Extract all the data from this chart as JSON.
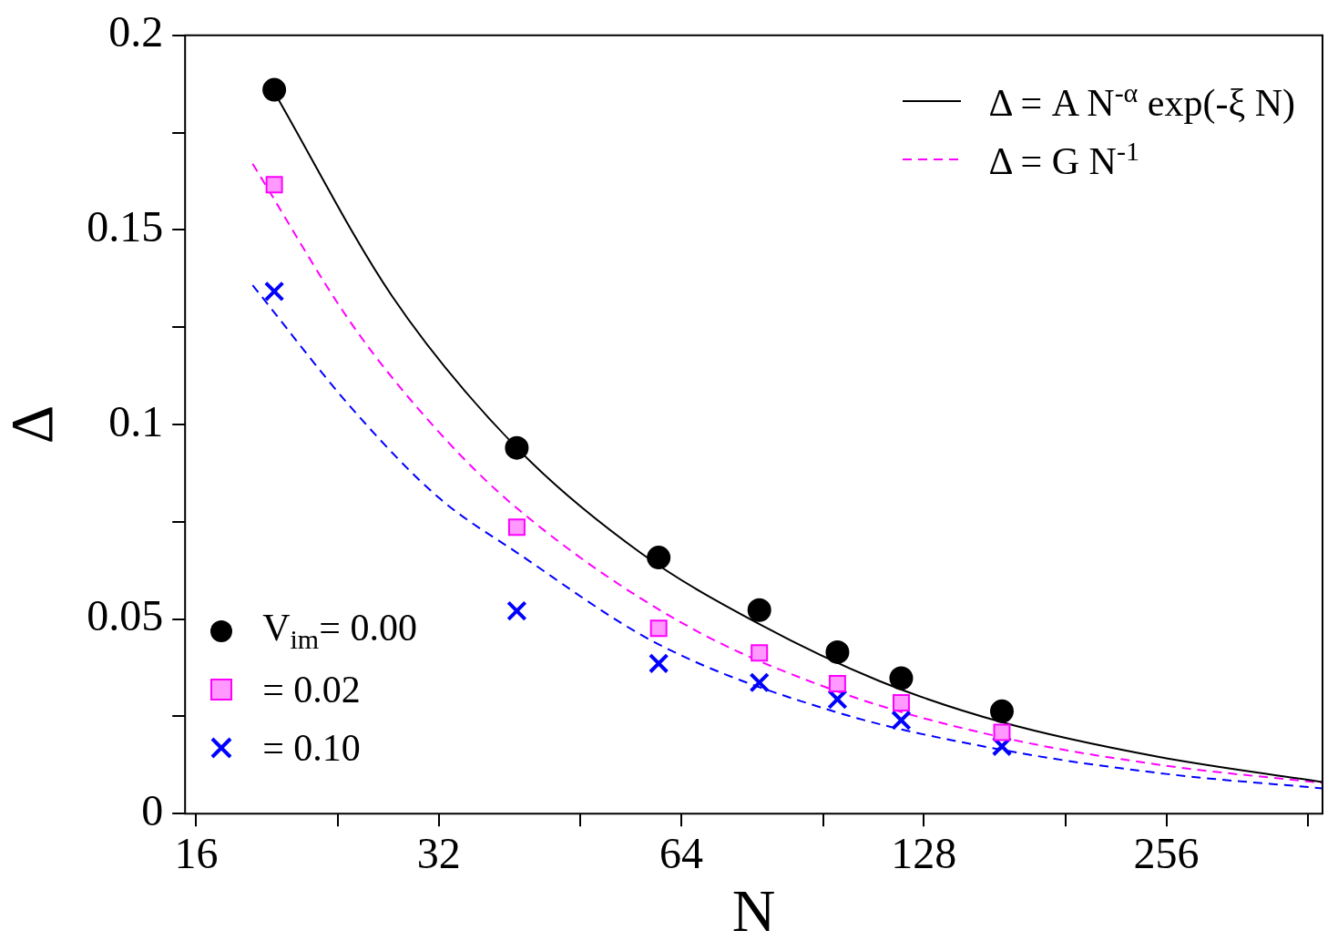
{
  "chart_data": {
    "type": "scatter",
    "xlabel": "N",
    "ylabel": "Δ",
    "log": "x",
    "xlim": [
      15.5,
      400
    ],
    "ylim": [
      0,
      0.2
    ],
    "xticks": [
      16,
      {
        "value": 24,
        "label": null
      },
      32,
      {
        "value": 48,
        "label": null
      },
      64,
      {
        "value": 96,
        "label": null
      },
      128,
      {
        "value": 192,
        "label": null
      },
      256,
      {
        "value": 384,
        "label": null
      }
    ],
    "yticks": [
      0,
      {
        "value": 0.025,
        "label": null
      },
      0.05,
      {
        "value": 0.075,
        "label": null
      },
      {
        "value": 0.1,
        "label": "0.1"
      },
      {
        "value": 0.125,
        "label": null
      },
      0.15,
      {
        "value": 0.175,
        "label": null
      },
      {
        "value": 0.2,
        "label": "0.2"
      }
    ],
    "grid": false,
    "legend": "top right",
    "series": [
      {
        "name": "Δ = A  N$^{-α}$ exp(-ξ N)",
        "type": "line",
        "color": "#000000",
        "line_style": "solid",
        "marker": "none",
        "x": [
          20,
          28,
          40,
          57,
          80,
          113,
          160,
          250,
          400
        ],
        "values": [
          0.1854,
          0.133,
          0.094,
          0.067,
          0.0487,
          0.034,
          0.0235,
          0.0146,
          0.0081
        ]
      },
      {
        "name": "Δ = G N$^{-1}$",
        "type": "line",
        "color": "#ff00ff",
        "line_style": "dashed",
        "marker": "none",
        "x": [
          18.8,
          25,
          32,
          40,
          64,
          100,
          160,
          256,
          400
        ],
        "values": [
          0.167,
          0.1256,
          0.0981,
          0.0785,
          0.0491,
          0.0314,
          0.0196,
          0.0123,
          0.0079
        ]
      },
      {
        "type": "line",
        "color": "#0000ff",
        "line_style": "dashed",
        "marker": "none",
        "x": [
          18.8,
          25,
          32,
          40,
          60,
          100,
          160,
          256,
          400
        ],
        "values": [
          0.1358,
          0.104,
          0.0812,
          0.0671,
          0.0435,
          0.026,
          0.0164,
          0.0102,
          0.0065
        ]
      },
      {
        "name": "V$_{im}$= 0.00",
        "color": "#000000",
        "marker": "circle",
        "x": [
          20,
          40,
          60,
          80,
          100,
          120,
          160
        ],
        "values": [
          0.186,
          0.094,
          0.0658,
          0.0523,
          0.0415,
          0.0348,
          0.0263
        ]
      },
      {
        "name": "= 0.02",
        "color": "#ff00ff",
        "marker": "square",
        "x": [
          20,
          40,
          60,
          80,
          100,
          120,
          160
        ],
        "values": [
          0.1616,
          0.0736,
          0.0476,
          0.0413,
          0.0334,
          0.0285,
          0.0209
        ]
      },
      {
        "name": "= 0.10",
        "color": "#0000ff",
        "marker": "cross",
        "x": [
          20,
          40,
          60,
          80,
          100,
          120,
          160
        ],
        "values": [
          0.1342,
          0.0521,
          0.0386,
          0.0337,
          0.0294,
          0.024,
          0.0173
        ]
      }
    ]
  }
}
